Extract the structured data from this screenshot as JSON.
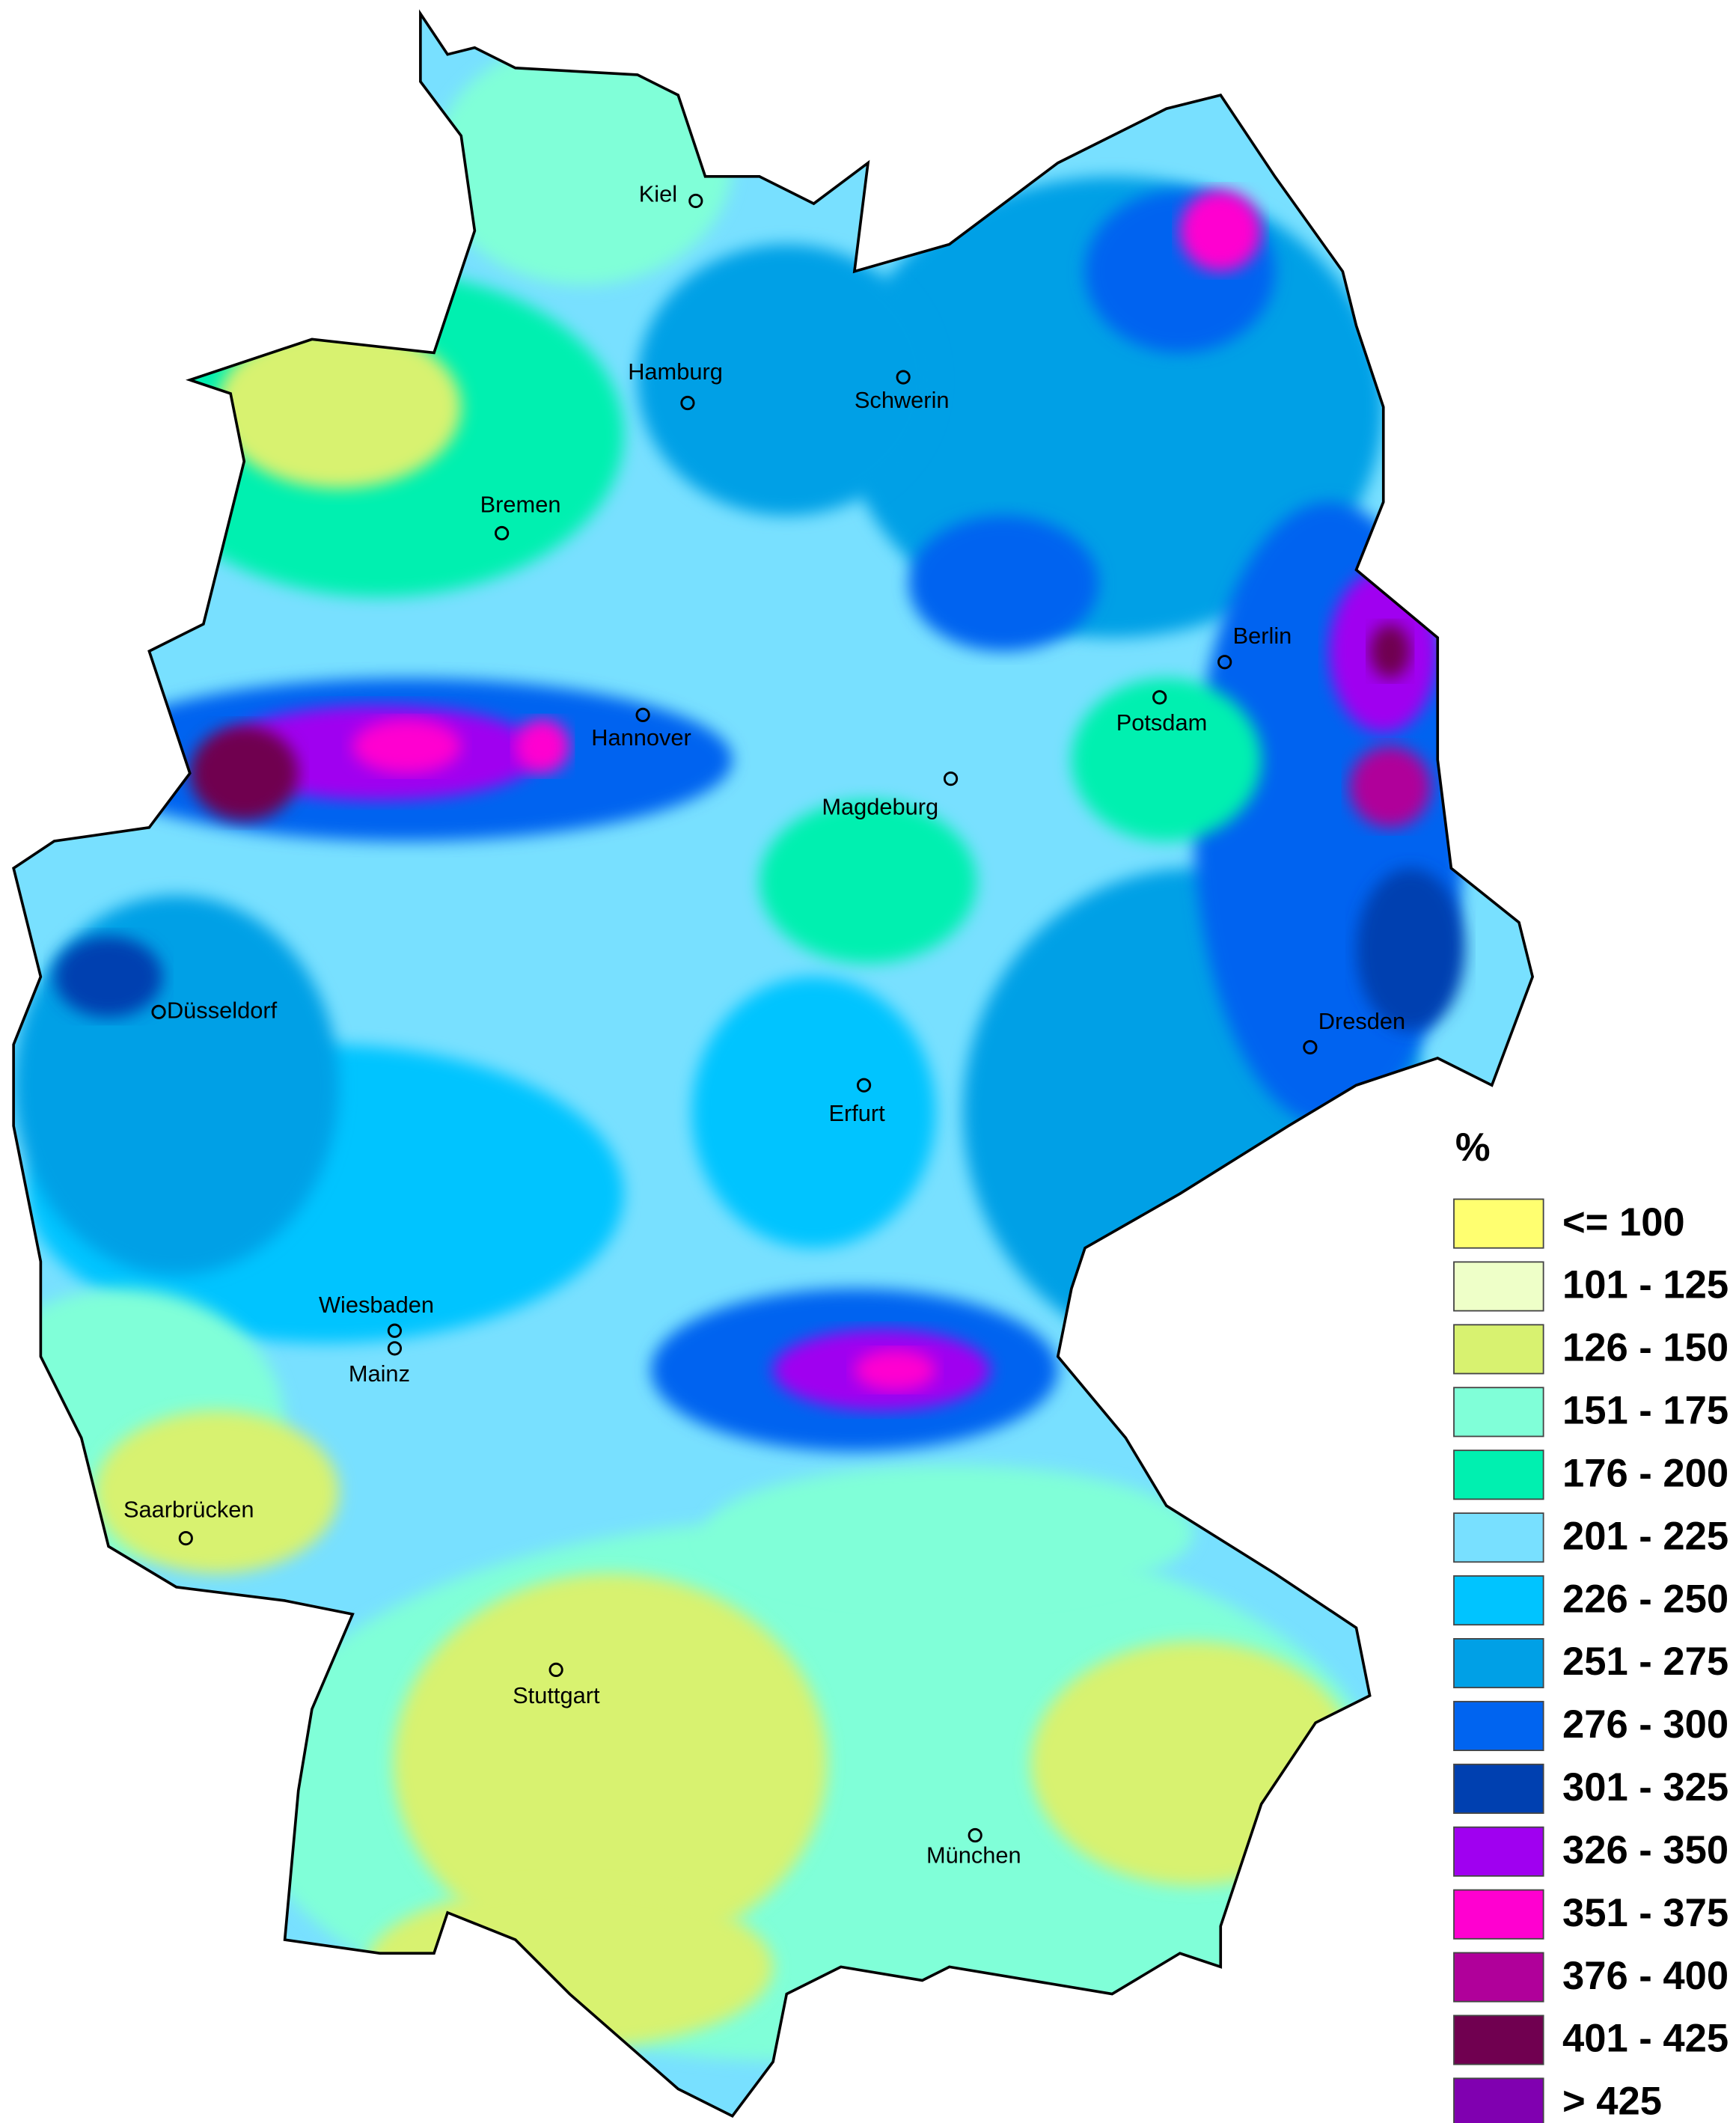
{
  "legend": {
    "title": "%",
    "items": [
      {
        "label": "<= 100",
        "color": "#ffff70"
      },
      {
        "label": "101 - 125",
        "color": "#eeffc8"
      },
      {
        "label": "126 - 150",
        "color": "#d8f270"
      },
      {
        "label": "151 - 175",
        "color": "#80ffd8"
      },
      {
        "label": "176 - 200",
        "color": "#00f0b0"
      },
      {
        "label": "201 - 225",
        "color": "#78e0ff"
      },
      {
        "label": "226 - 250",
        "color": "#00c4ff"
      },
      {
        "label": "251 - 275",
        "color": "#00a0e6"
      },
      {
        "label": "276 - 300",
        "color": "#0064f0"
      },
      {
        "label": "301 - 325",
        "color": "#0040b0"
      },
      {
        "label": "326 - 350",
        "color": "#a000f0"
      },
      {
        "label": "351 - 375",
        "color": "#ff00d0"
      },
      {
        "label": "376 - 400",
        "color": "#b0009a"
      },
      {
        "label": "401 - 425",
        "color": "#700050"
      },
      {
        "label": "> 425",
        "color": "#8000b0"
      }
    ]
  },
  "cities": [
    {
      "label": "Kiel"
    },
    {
      "label": "Hamburg"
    },
    {
      "label": "Schwerin"
    },
    {
      "label": "Bremen"
    },
    {
      "label": "Berlin"
    },
    {
      "label": "Potsdam"
    },
    {
      "label": "Hannover"
    },
    {
      "label": "Magdeburg"
    },
    {
      "label": "Düsseldorf"
    },
    {
      "label": "Dresden"
    },
    {
      "label": "Erfurt"
    },
    {
      "label": "Wiesbaden"
    },
    {
      "label": "Mainz"
    },
    {
      "label": "Saarbrücken"
    },
    {
      "label": "Stuttgart"
    },
    {
      "label": "München"
    }
  ]
}
